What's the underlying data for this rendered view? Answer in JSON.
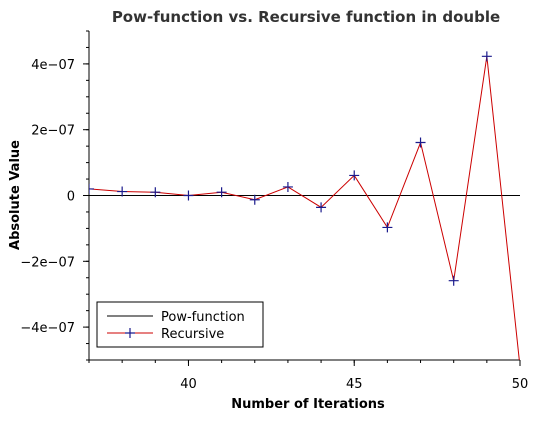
{
  "chart_data": {
    "type": "line",
    "title": "Pow-function vs. Recursive function in double",
    "xlabel": "Number of Iterations",
    "ylabel": "Absolute Value",
    "xlim": [
      37,
      50
    ],
    "ylim": [
      -5e-07,
      5e-07
    ],
    "x_ticks": [
      40,
      45,
      50
    ],
    "x_tick_labels": [
      "40",
      "45",
      "50"
    ],
    "y_ticks": [
      4e-07,
      2e-07,
      0,
      -2e-07,
      -4e-07
    ],
    "y_tick_labels": [
      "4e−07",
      "2e−07",
      "0",
      "−2e−07",
      "−4e−07"
    ],
    "grid": false,
    "legend_position": "bottom-left",
    "series": [
      {
        "name": "Pow-function",
        "color": "#000000",
        "marker": "none",
        "x": [
          37,
          50
        ],
        "values": [
          0,
          0
        ]
      },
      {
        "name": "Recursive",
        "color": "#cc0000",
        "marker": "plus",
        "marker_color": "#1a1a8c",
        "x": [
          37,
          38,
          39,
          40,
          41,
          42,
          43,
          44,
          45,
          46,
          47,
          48,
          49,
          50
        ],
        "values": [
          2e-08,
          1.2e-08,
          1e-08,
          0.0,
          1e-08,
          -1.3e-08,
          2.6e-08,
          -3.6e-08,
          6.1e-08,
          -9.7e-08,
          1.61e-07,
          -2.59e-07,
          4.23e-07,
          -5.2e-07
        ]
      }
    ]
  }
}
